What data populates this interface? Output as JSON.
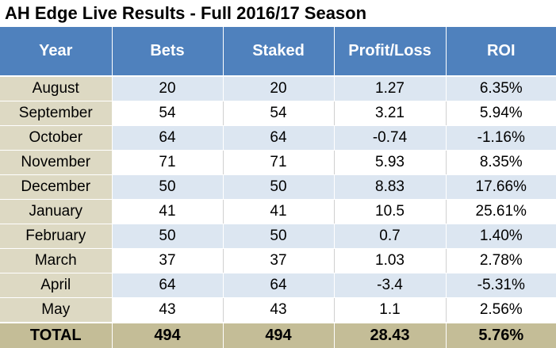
{
  "title": "AH Edge Live Results - Full 2016/17 Season",
  "colors": {
    "header_bg": "#4f81bd",
    "month_bg": "#ddd9c3",
    "row_alt_bg": "#dce6f1",
    "total_bg": "#c4bd97"
  },
  "chart_data": {
    "type": "table",
    "columns": [
      "Year",
      "Bets",
      "Staked",
      "Profit/Loss",
      "ROI"
    ],
    "rows": [
      [
        "August",
        "20",
        "20",
        "1.27",
        "6.35%"
      ],
      [
        "September",
        "54",
        "54",
        "3.21",
        "5.94%"
      ],
      [
        "October",
        "64",
        "64",
        "-0.74",
        "-1.16%"
      ],
      [
        "November",
        "71",
        "71",
        "5.93",
        "8.35%"
      ],
      [
        "December",
        "50",
        "50",
        "8.83",
        "17.66%"
      ],
      [
        "January",
        "41",
        "41",
        "10.5",
        "25.61%"
      ],
      [
        "February",
        "50",
        "50",
        "0.7",
        "1.40%"
      ],
      [
        "March",
        "37",
        "37",
        "1.03",
        "2.78%"
      ],
      [
        "April",
        "64",
        "64",
        "-3.4",
        "-5.31%"
      ],
      [
        "May",
        "43",
        "43",
        "1.1",
        "2.56%"
      ]
    ],
    "total": [
      "TOTAL",
      "494",
      "494",
      "28.43",
      "5.76%"
    ]
  }
}
